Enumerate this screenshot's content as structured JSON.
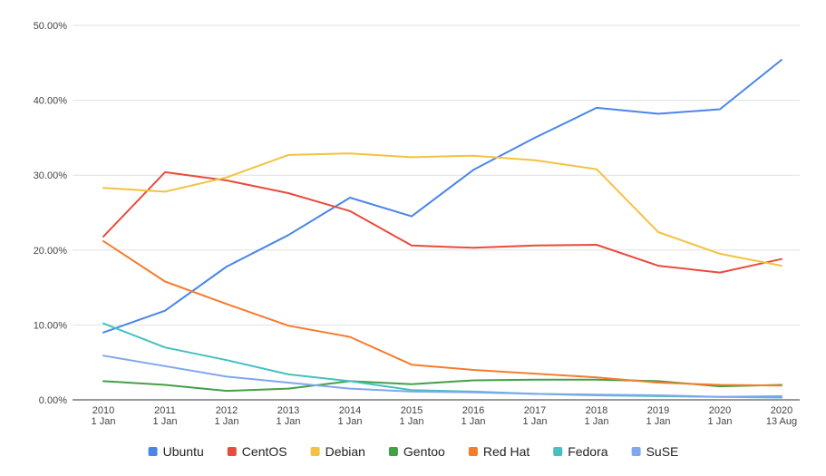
{
  "chart_data": {
    "type": "line",
    "title": "",
    "xlabel": "",
    "ylabel": "",
    "ylim": [
      0,
      50
    ],
    "y_ticks": [
      {
        "value": 0,
        "label": "0.00%"
      },
      {
        "value": 10,
        "label": "10.00%"
      },
      {
        "value": 20,
        "label": "20.00%"
      },
      {
        "value": 30,
        "label": "30.00%"
      },
      {
        "value": 40,
        "label": "40.00%"
      },
      {
        "value": 50,
        "label": "50.00%"
      }
    ],
    "categories": [
      {
        "year": "2010",
        "date": "1 Jan"
      },
      {
        "year": "2011",
        "date": "1 Jan"
      },
      {
        "year": "2012",
        "date": "1 Jan"
      },
      {
        "year": "2013",
        "date": "1 Jan"
      },
      {
        "year": "2014",
        "date": "1 Jan"
      },
      {
        "year": "2015",
        "date": "1 Jan"
      },
      {
        "year": "2016",
        "date": "1 Jan"
      },
      {
        "year": "2017",
        "date": "1 Jan"
      },
      {
        "year": "2018",
        "date": "1 Jan"
      },
      {
        "year": "2019",
        "date": "1 Jan"
      },
      {
        "year": "2020",
        "date": "1 Jan"
      },
      {
        "year": "2020",
        "date": "13 Aug"
      }
    ],
    "grid": true,
    "legend_position": "bottom",
    "series": [
      {
        "name": "Ubuntu",
        "color": "#4a86e8",
        "values": [
          9.0,
          11.9,
          17.8,
          22.0,
          27.0,
          24.5,
          30.7,
          35.0,
          39.0,
          38.2,
          38.8,
          45.4
        ]
      },
      {
        "name": "CentOS",
        "color": "#e84c3d",
        "values": [
          21.8,
          30.4,
          29.3,
          27.6,
          25.2,
          20.6,
          20.3,
          20.6,
          20.7,
          17.9,
          17.0,
          18.8
        ]
      },
      {
        "name": "Debian",
        "color": "#f4c242",
        "values": [
          28.3,
          27.8,
          29.7,
          32.7,
          32.9,
          32.4,
          32.6,
          32.0,
          30.8,
          22.4,
          19.5,
          17.9
        ]
      },
      {
        "name": "Gentoo",
        "color": "#43a047",
        "values": [
          2.5,
          2.0,
          1.2,
          1.5,
          2.5,
          2.1,
          2.6,
          2.7,
          2.7,
          2.5,
          1.8,
          2.0
        ]
      },
      {
        "name": "Red Hat",
        "color": "#f67c2c",
        "values": [
          21.2,
          15.8,
          12.8,
          9.9,
          8.4,
          4.7,
          4.0,
          3.5,
          3.0,
          2.3,
          2.0,
          1.9
        ]
      },
      {
        "name": "Fedora",
        "color": "#45c0c0",
        "values": [
          10.2,
          7.0,
          5.3,
          3.4,
          2.5,
          1.3,
          1.1,
          0.8,
          0.6,
          0.5,
          0.4,
          0.3
        ]
      },
      {
        "name": "SuSE",
        "color": "#7fa7ee",
        "values": [
          5.9,
          4.5,
          3.1,
          2.3,
          1.5,
          1.1,
          1.0,
          0.8,
          0.7,
          0.6,
          0.4,
          0.5
        ]
      }
    ]
  }
}
